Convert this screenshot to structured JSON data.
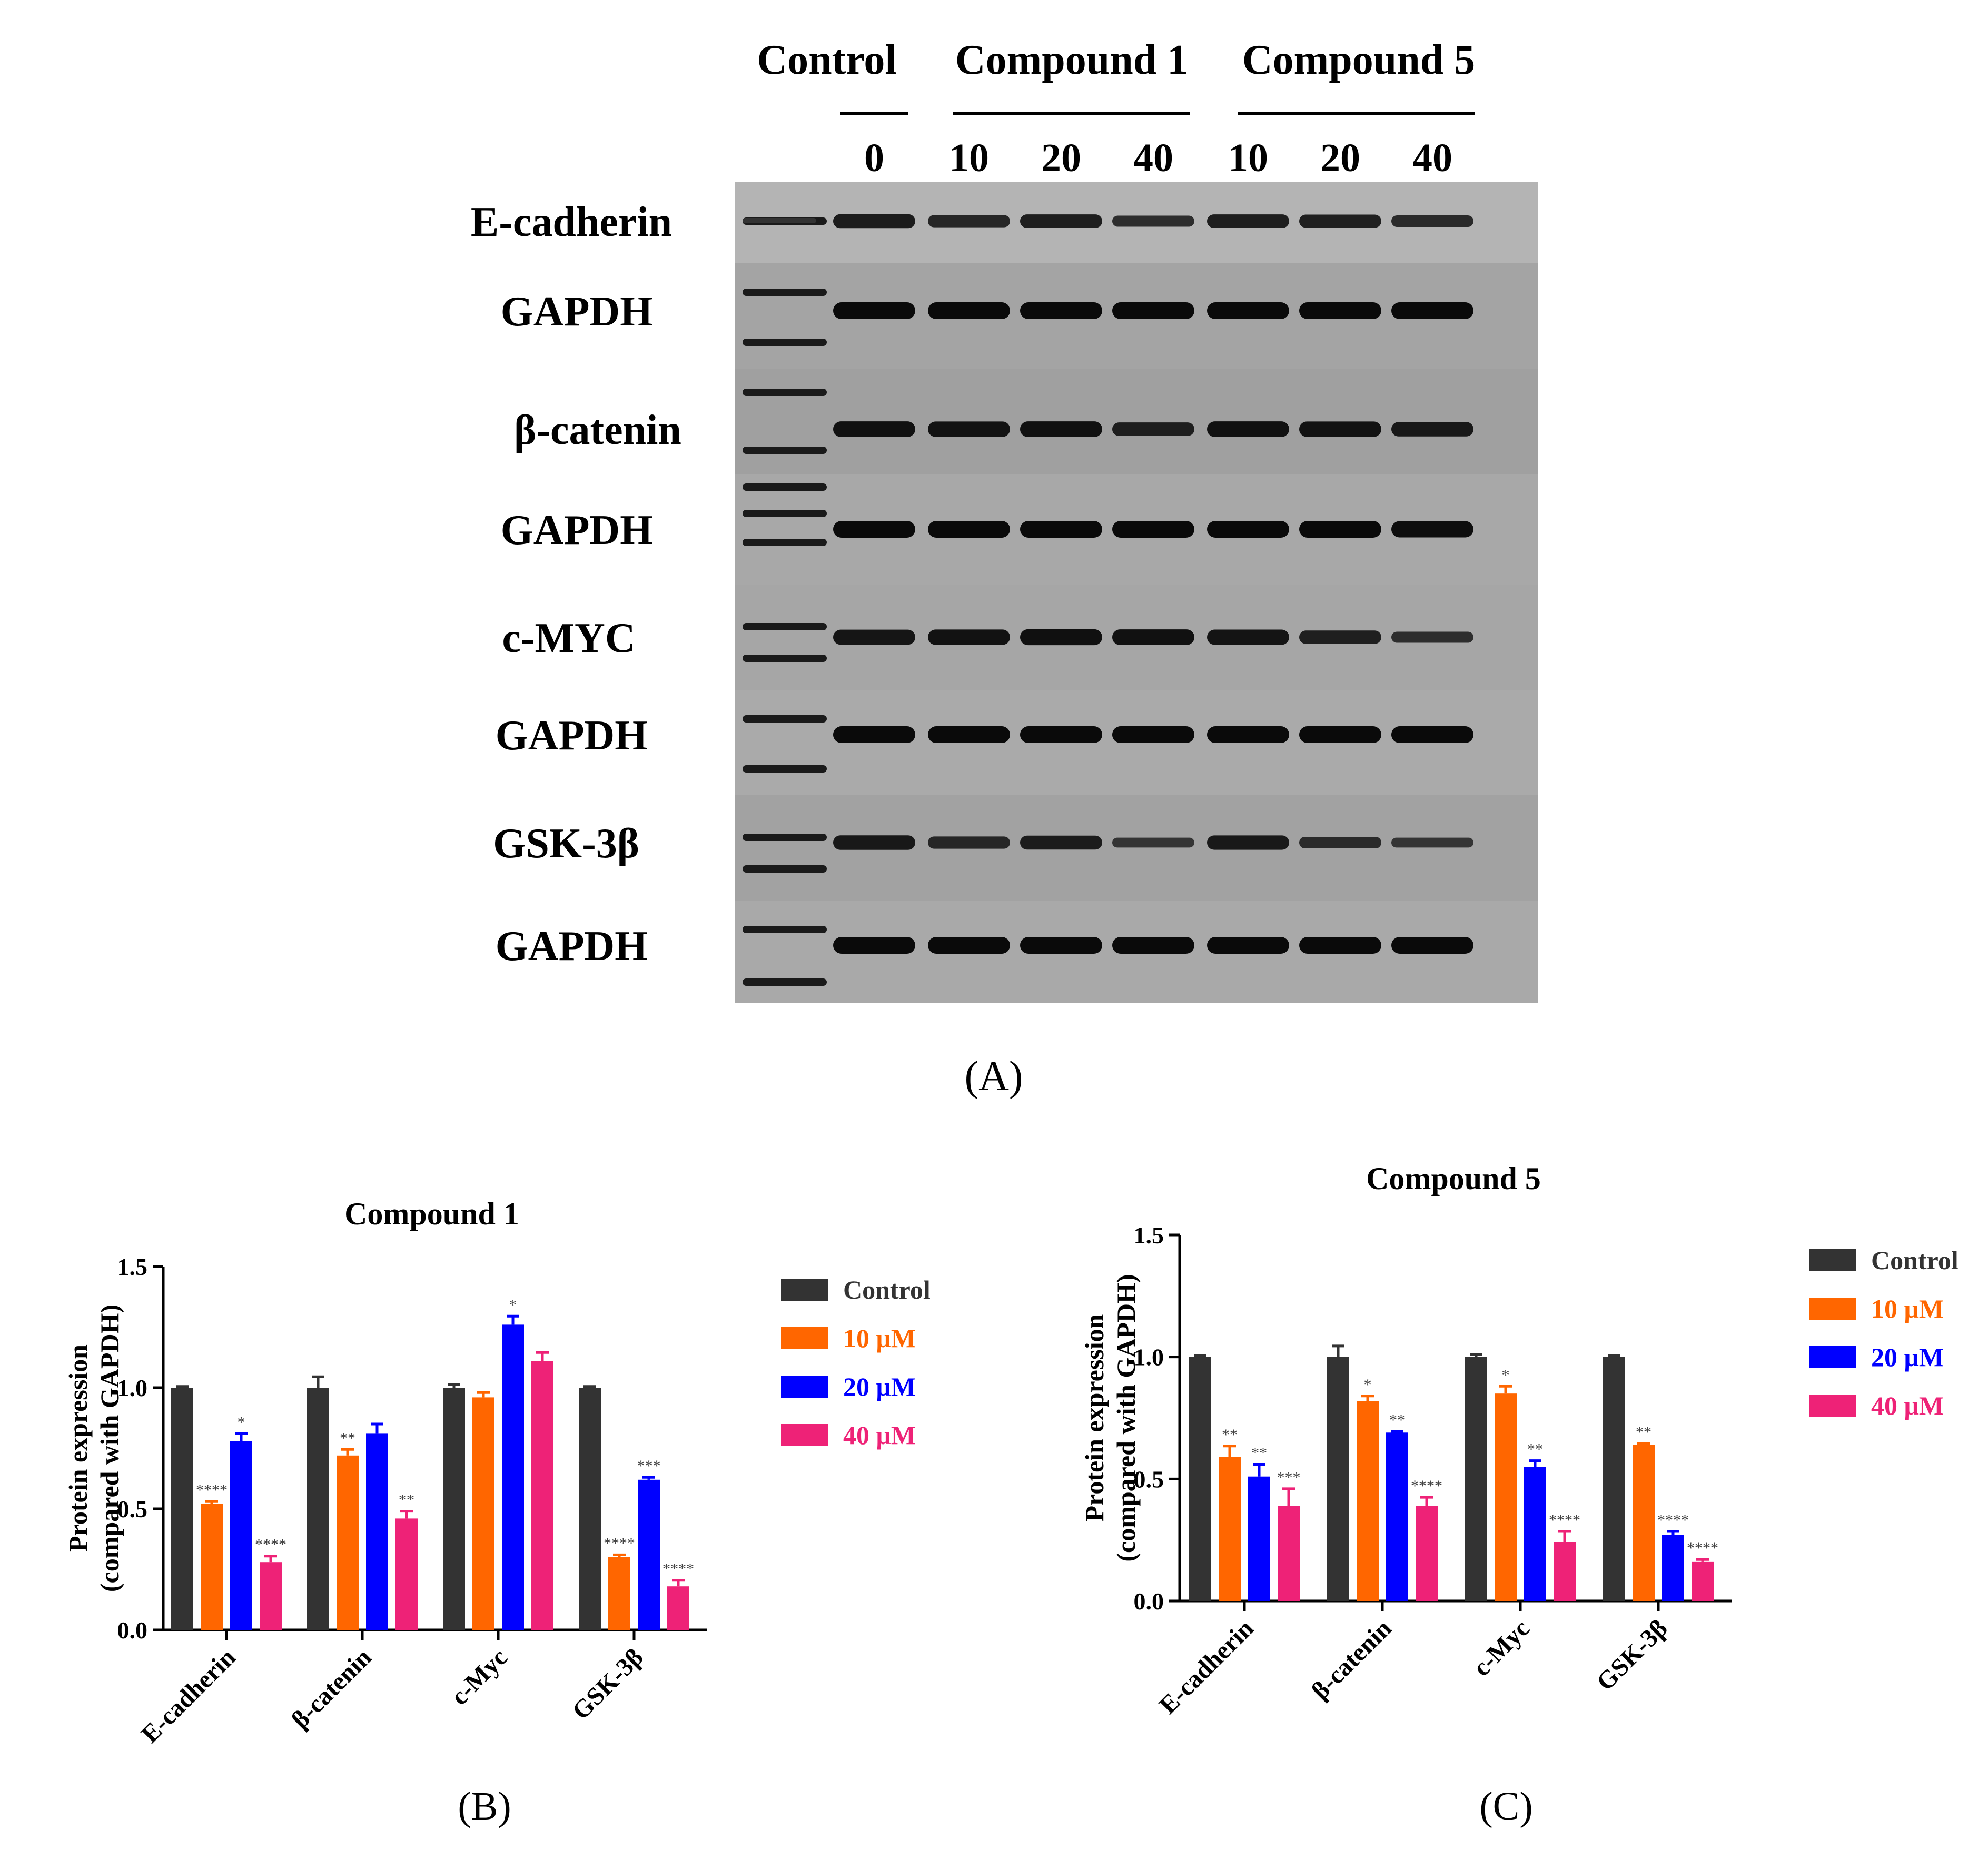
{
  "blot": {
    "group_labels": [
      "Control",
      "Compound 1",
      "Compound 5"
    ],
    "dose_labels": [
      "0",
      "10",
      "20",
      "40",
      "10",
      "20",
      "40"
    ],
    "row_labels": [
      "E-cadherin",
      "GAPDH",
      "β-catenin",
      "GAPDH",
      "c-MYC",
      "GAPDH",
      "GSK-3β",
      "GAPDH"
    ],
    "band_intensity": [
      [
        0.75,
        0.6,
        0.72,
        0.5,
        0.72,
        0.68,
        0.55
      ],
      [
        1,
        1,
        1,
        1,
        1,
        1,
        1
      ],
      [
        0.9,
        0.88,
        0.9,
        0.72,
        0.9,
        0.88,
        0.8
      ],
      [
        1,
        1,
        1,
        1,
        1,
        1,
        0.95
      ],
      [
        0.85,
        0.88,
        0.92,
        0.9,
        0.86,
        0.7,
        0.5
      ],
      [
        1,
        1,
        1,
        1,
        1,
        1,
        1
      ],
      [
        0.8,
        0.6,
        0.75,
        0.4,
        0.78,
        0.55,
        0.4
      ],
      [
        1,
        1,
        1,
        1,
        1,
        1,
        1
      ]
    ],
    "panel_label": "(A)"
  },
  "chart_data": [
    {
      "type": "bar",
      "title": "Compound 1",
      "panel_label": "(B)",
      "ylabel_line1": "Protein expression",
      "ylabel_line2": "(compared with GAPDH)",
      "ylim": [
        0,
        1.5
      ],
      "yticks": [
        "0.0",
        "0.5",
        "1.0",
        "1.5"
      ],
      "categories": [
        "E-cadherin",
        "β-catenin",
        "c-Myc",
        "GSK-3β"
      ],
      "legend_position": "right",
      "series": [
        {
          "name": "Control",
          "color": "#333333",
          "values": [
            1.0,
            1.0,
            1.0,
            1.0
          ],
          "errors": [
            0.005,
            0.045,
            0.012,
            0.005
          ],
          "sig": [
            "",
            "",
            "",
            ""
          ]
        },
        {
          "name": "10 μM",
          "color": "#FF6600",
          "values": [
            0.52,
            0.72,
            0.96,
            0.3
          ],
          "errors": [
            0.01,
            0.025,
            0.02,
            0.01
          ],
          "sig": [
            "****",
            "**",
            "",
            "****"
          ]
        },
        {
          "name": "20 μM",
          "color": "#0000FF",
          "values": [
            0.78,
            0.81,
            1.26,
            0.62
          ],
          "errors": [
            0.03,
            0.04,
            0.035,
            0.01
          ],
          "sig": [
            "*",
            "",
            "*",
            "***"
          ]
        },
        {
          "name": "40 μM",
          "color": "#EE2277",
          "values": [
            0.28,
            0.46,
            1.11,
            0.18
          ],
          "errors": [
            0.025,
            0.03,
            0.035,
            0.025
          ],
          "sig": [
            "****",
            "**",
            "",
            "****"
          ]
        }
      ]
    },
    {
      "type": "bar",
      "title": "Compound 5",
      "panel_label": "(C)",
      "ylabel_line1": "Protein expression",
      "ylabel_line2": "(compared with GAPDH)",
      "ylim": [
        0,
        1.5
      ],
      "yticks": [
        "0.0",
        "0.5",
        "1.0",
        "1.5"
      ],
      "categories": [
        "E-cadherin",
        "β-catenin",
        "c-Myc",
        "GSK-3β"
      ],
      "legend_position": "right",
      "series": [
        {
          "name": "Control",
          "color": "#333333",
          "values": [
            1.0,
            1.0,
            1.0,
            1.0
          ],
          "errors": [
            0.005,
            0.045,
            0.01,
            0.005
          ],
          "sig": [
            "",
            "",
            "",
            ""
          ]
        },
        {
          "name": "10 μM",
          "color": "#FF6600",
          "values": [
            0.59,
            0.82,
            0.85,
            0.64
          ],
          "errors": [
            0.045,
            0.02,
            0.03,
            0.005
          ],
          "sig": [
            "**",
            "*",
            "*",
            "**"
          ]
        },
        {
          "name": "20 μM",
          "color": "#0000FF",
          "values": [
            0.51,
            0.69,
            0.55,
            0.27
          ],
          "errors": [
            0.05,
            0.005,
            0.025,
            0.015
          ],
          "sig": [
            "**",
            "**",
            "**",
            "****"
          ]
        },
        {
          "name": "40 μM",
          "color": "#EE2277",
          "values": [
            0.39,
            0.39,
            0.24,
            0.16
          ],
          "errors": [
            0.07,
            0.035,
            0.045,
            0.01
          ],
          "sig": [
            "***",
            "****",
            "****",
            "****"
          ]
        }
      ]
    }
  ]
}
